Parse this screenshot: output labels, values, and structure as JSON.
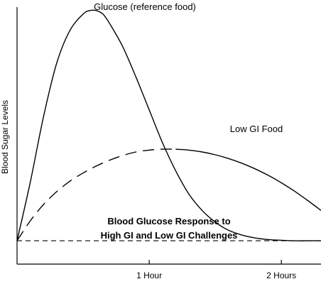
{
  "chart_data": {
    "type": "line",
    "caption": [
      "Blood Glucose Response to",
      "High GI and Low GI Challenges"
    ],
    "ylabel": "Blood Sugar Levels",
    "xlabel": "",
    "xlim": [
      0,
      2.3
    ],
    "ylim": [
      -1,
      10
    ],
    "x_ticks": [
      {
        "value": 1,
        "label": "1 Hour"
      },
      {
        "value": 2,
        "label": "2 Hours"
      }
    ],
    "baseline": 0,
    "series": [
      {
        "name": "Glucose (reference food)",
        "style": "solid",
        "x": [
          0,
          0.1,
          0.2,
          0.3,
          0.4,
          0.5,
          0.55,
          0.6,
          0.65,
          0.7,
          0.8,
          0.9,
          1.0,
          1.1,
          1.2,
          1.3,
          1.4,
          1.5,
          1.6,
          1.7,
          1.8,
          1.9,
          2.0,
          2.1,
          2.2,
          2.3
        ],
        "values": [
          0,
          2.5,
          5.3,
          7.6,
          9.0,
          9.7,
          9.85,
          9.85,
          9.7,
          9.3,
          8.3,
          7.0,
          5.6,
          4.2,
          3.0,
          2.0,
          1.3,
          0.8,
          0.45,
          0.25,
          0.12,
          0.05,
          0.02,
          0.0,
          0.0,
          0.0
        ]
      },
      {
        "name": "Low GI Food",
        "style": "dashed-to-solid",
        "x": [
          0,
          0.1,
          0.2,
          0.3,
          0.4,
          0.5,
          0.6,
          0.7,
          0.8,
          0.9,
          1.0,
          1.1,
          1.2,
          1.3,
          1.4,
          1.5,
          1.6,
          1.7,
          1.8,
          1.9,
          2.0,
          2.1,
          2.2,
          2.3
        ],
        "values": [
          0,
          0.85,
          1.55,
          2.1,
          2.55,
          2.9,
          3.2,
          3.45,
          3.65,
          3.8,
          3.88,
          3.92,
          3.92,
          3.88,
          3.8,
          3.68,
          3.52,
          3.32,
          3.08,
          2.8,
          2.48,
          2.12,
          1.72,
          1.3
        ]
      }
    ],
    "legend": "inline"
  }
}
